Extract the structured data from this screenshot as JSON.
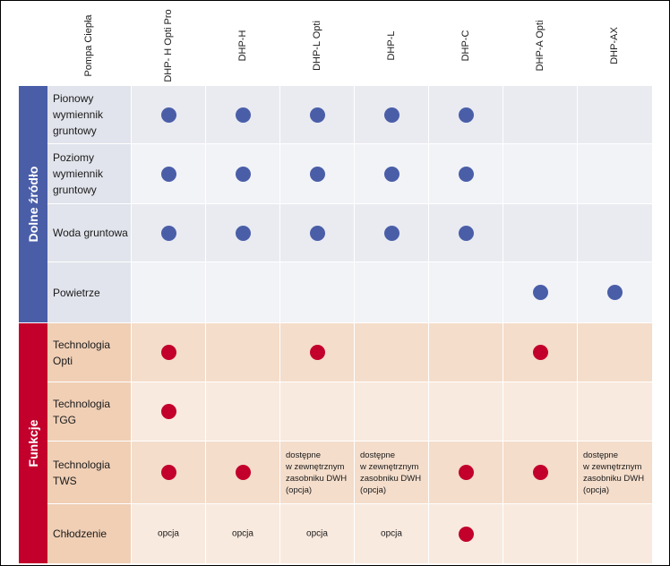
{
  "header": {
    "corner_label": "Pompa Ciepła",
    "models": [
      "DHP- H Opti Pro",
      "DHP-H",
      "DHP-L Opti",
      "DHP-L",
      "DHP-C",
      "DHP-A Opti",
      "DHP-AX"
    ]
  },
  "groups": [
    {
      "label": "Dolne źródło",
      "color": "#4a5ea8"
    },
    {
      "label": "Funkcje",
      "color": "#c2002b"
    }
  ],
  "rows": [
    {
      "label_lines": [
        "Pionowy",
        "wymiennik",
        "gruntowy"
      ],
      "cells": [
        "blue",
        "blue",
        "blue",
        "blue",
        "blue",
        "",
        ""
      ]
    },
    {
      "label_lines": [
        "Poziomy",
        "wymiennik",
        "gruntowy"
      ],
      "cells": [
        "blue",
        "blue",
        "blue",
        "blue",
        "blue",
        "",
        ""
      ]
    },
    {
      "label_lines": [
        "Woda gruntowa"
      ],
      "cells": [
        "blue",
        "blue",
        "blue",
        "blue",
        "blue",
        "",
        ""
      ]
    },
    {
      "label_lines": [
        "Powietrze"
      ],
      "cells": [
        "",
        "",
        "",
        "",
        "",
        "blue",
        "blue"
      ]
    },
    {
      "label_lines": [
        "Technologia",
        "Opti"
      ],
      "cells": [
        "red",
        "",
        "red",
        "",
        "",
        "red",
        ""
      ]
    },
    {
      "label_lines": [
        "Technologia",
        "TGG"
      ],
      "cells": [
        "red",
        "",
        "",
        "",
        "",
        "",
        ""
      ]
    },
    {
      "label_lines": [
        "Technologia TWS"
      ],
      "cells": [
        "red",
        "red",
        "note",
        "note",
        "red",
        "red",
        "note"
      ]
    },
    {
      "label_lines": [
        "Chłodzenie"
      ],
      "cells": [
        "opt",
        "opt",
        "opt",
        "opt",
        "red",
        "",
        ""
      ]
    }
  ],
  "note_text": [
    "dostępne",
    "w zewnętrznym",
    "zasobniku DWH",
    "(opcja)"
  ],
  "option_text": "opcja",
  "colors": {
    "blue_dot": "#4a5ea8",
    "red_dot": "#c2002b",
    "blue_label_bg": "#e1e4ec",
    "blue_row_a": "#e9ebf1",
    "blue_row_b": "#f2f3f7",
    "red_label_bg": "#f0cfb5",
    "red_row_a": "#f4ddcb",
    "red_row_b": "#f9eadf"
  }
}
